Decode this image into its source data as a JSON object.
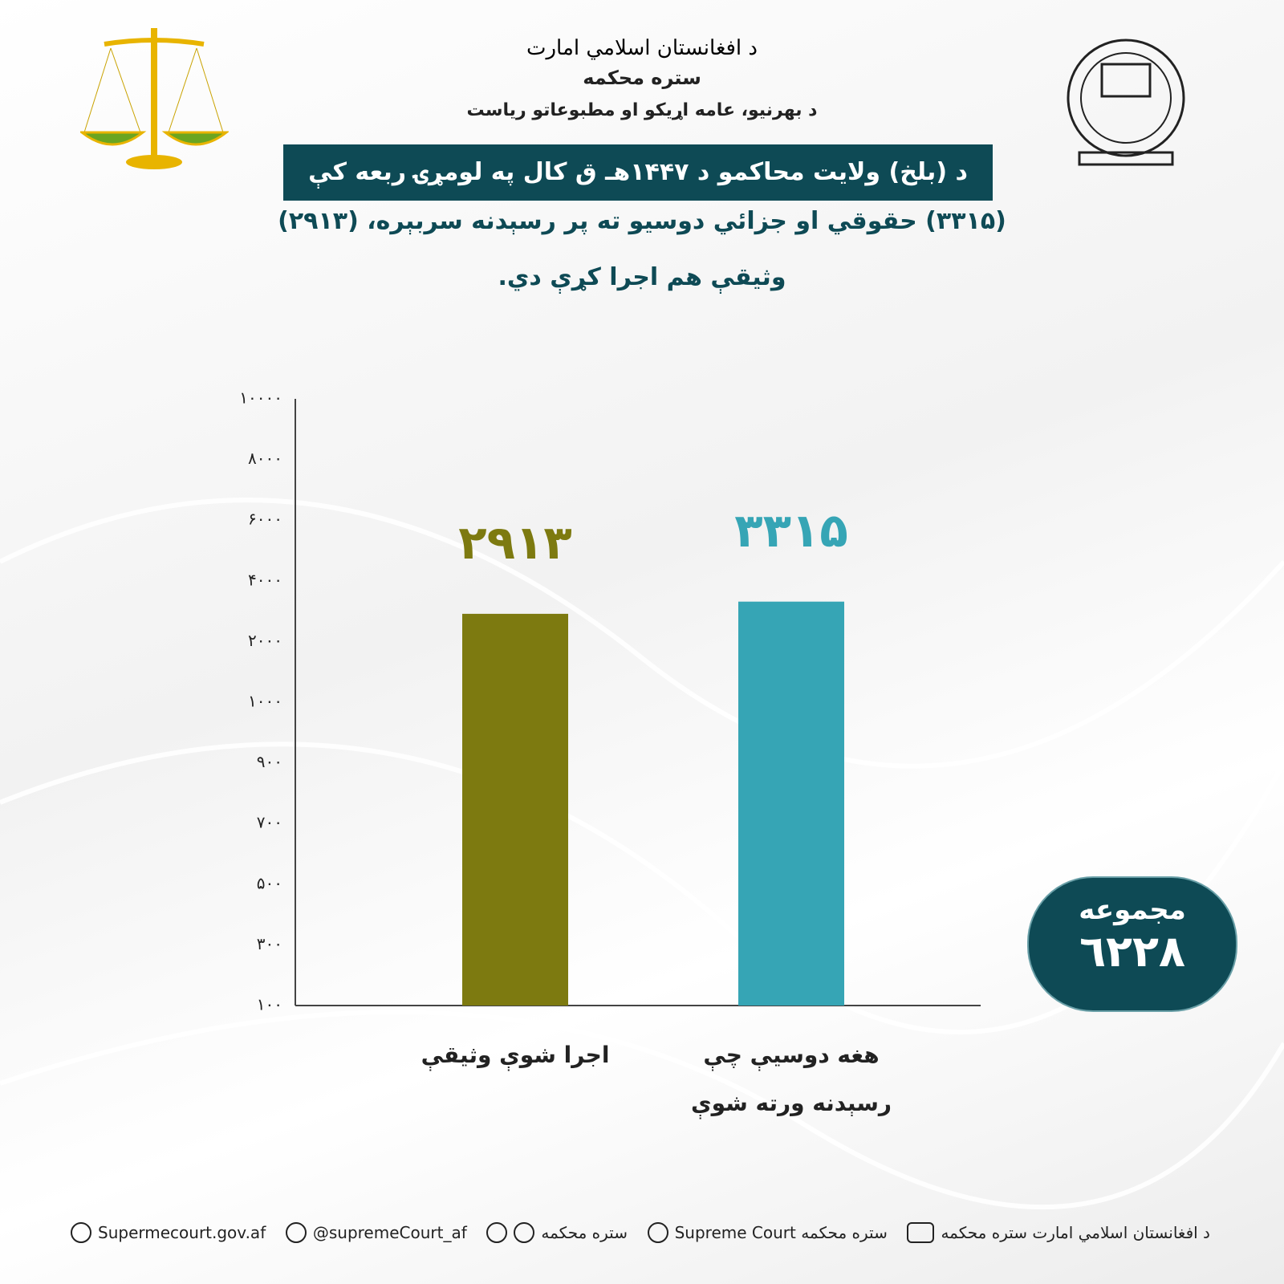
{
  "header": {
    "emirate": "د افغانستان اسلامي امارت",
    "court": "ستره محکمه",
    "department": "د بهرنیو، عامه اړیکو او مطبوعاتو ریاست",
    "headline": "د (بلخ) ولایت محاکمو د ۱۴۴۷هـ ق کال په لومړۍ ربعه کې",
    "line1": "(۳۳۱۵) حقوقي او جزائي دوسیو ته پر رسېدنه سربېره، (۲۹۱۳)",
    "line2": "وثیقې هم اجرا کړې دي."
  },
  "chart_data": {
    "type": "bar",
    "categories": [
      "اجرا شوې وثیقې",
      "هغه دوسیې چې رسېدنه ورته شوې"
    ],
    "values": [
      2913,
      3315
    ],
    "value_labels": [
      "۲۹۱۳",
      "۳۳۱۵"
    ],
    "colors": [
      "#7d7a10",
      "#36a5b5"
    ],
    "ylim": [
      100,
      10000
    ],
    "yticks": [
      {
        "value": 100,
        "label": "۱۰۰"
      },
      {
        "value": 300,
        "label": "۳۰۰"
      },
      {
        "value": 500,
        "label": "۵۰۰"
      },
      {
        "value": 700,
        "label": "۷۰۰"
      },
      {
        "value": 900,
        "label": "۹۰۰"
      },
      {
        "value": 1000,
        "label": "۱۰۰۰"
      },
      {
        "value": 2000,
        "label": "۲۰۰۰"
      },
      {
        "value": 4000,
        "label": "۴۰۰۰"
      },
      {
        "value": 6000,
        "label": "۶۰۰۰"
      },
      {
        "value": 8000,
        "label": "۸۰۰۰"
      },
      {
        "value": 10000,
        "label": "۱۰۰۰۰"
      }
    ],
    "grid": false
  },
  "total": {
    "label": "مجموعه",
    "value": "٦٢٢٨"
  },
  "footer": {
    "website": "Supermecourt.gov.af",
    "x": "@supremeCourt_af",
    "messaging": "ستره محکمه",
    "facebook": "Supreme Court ستره محکمه",
    "youtube": "د افغانستان اسلامي امارت ستره محکمه"
  }
}
